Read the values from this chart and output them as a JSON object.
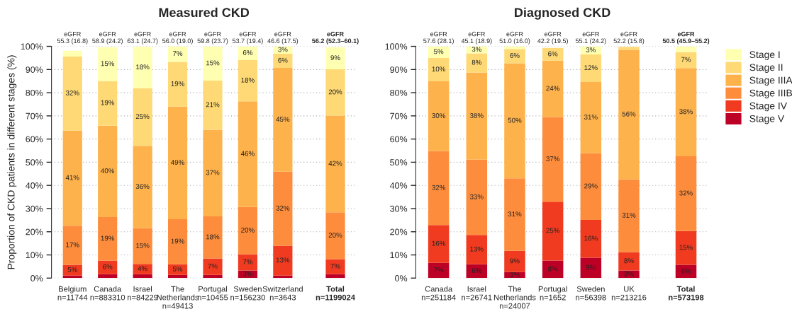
{
  "chart_data": [
    {
      "type": "bar",
      "stacked": true,
      "title": "Measured CKD",
      "ylabel": "Proportion of CKD patients in different stages (%)",
      "categories": [
        "Belgium\nn=11744",
        "Canada\nn=883310",
        "Israel\nn=84229",
        "The\nNetherlands\nn=49413",
        "Portugal\nn=10455",
        "Sweden\nn=156230",
        "Switzerland\nn=3643",
        "Total\nn=1199024"
      ],
      "series": [
        {
          "name": "Stage V",
          "color": "#bd0026",
          "values": [
            1.1,
            1.7,
            1.7,
            1.4,
            1.4,
            3.3,
            1.1,
            1.7
          ],
          "value_labels": [
            null,
            null,
            null,
            null,
            null,
            "3%",
            null,
            null
          ]
        },
        {
          "name": "Stage IV",
          "color": "#f03b20",
          "values": [
            4.6,
            5.9,
            4.4,
            4.6,
            7.1,
            7.0,
            12.9,
            6.5
          ],
          "value_labels": [
            "5%",
            "6%",
            "4%",
            "5%",
            "7%",
            "7%",
            "13%",
            "7%"
          ]
        },
        {
          "name": "Stage IIIB",
          "color": "#fd8d3c",
          "values": [
            16.9,
            18.7,
            15.4,
            19.4,
            18.1,
            20.4,
            31.9,
            20.2
          ],
          "value_labels": [
            "17%",
            "19%",
            "15%",
            "19%",
            "18%",
            "20%",
            "32%",
            "20%"
          ]
        },
        {
          "name": "Stage IIIA",
          "color": "#feb24c",
          "values": [
            41.1,
            39.5,
            35.6,
            48.6,
            37.4,
            45.6,
            44.8,
            41.7
          ],
          "value_labels": [
            "41%",
            "40%",
            "36%",
            "49%",
            "37%",
            "46%",
            "45%",
            "42%"
          ]
        },
        {
          "name": "Stage II",
          "color": "#fed976",
          "values": [
            31.9,
            19.3,
            24.8,
            19.3,
            21.2,
            17.8,
            6.1,
            20.0
          ],
          "value_labels": [
            "32%",
            "19%",
            "25%",
            "19%",
            "21%",
            "18%",
            "6%",
            "20%"
          ]
        },
        {
          "name": "Stage I",
          "color": "#ffffb2",
          "values": [
            2.5,
            14.5,
            17.9,
            6.7,
            14.8,
            5.9,
            3.2,
            9.5
          ],
          "value_labels": [
            null,
            "15%",
            "18%",
            "7%",
            "15%",
            "6%",
            "3%",
            "9%"
          ]
        }
      ],
      "ylim": [
        0,
        100
      ],
      "yticks": [
        {
          "value": 0,
          "label": "0%"
        },
        {
          "value": 10,
          "label": "10%"
        },
        {
          "value": 20,
          "label": "20%"
        },
        {
          "value": 30,
          "label": "30%"
        },
        {
          "value": 40,
          "label": "40%"
        },
        {
          "value": 50,
          "label": "50%"
        },
        {
          "value": 60,
          "label": "60%"
        },
        {
          "value": 70,
          "label": "70%"
        },
        {
          "value": 80,
          "label": "80%"
        },
        {
          "value": 90,
          "label": "90%"
        },
        {
          "value": 100,
          "label": "100%"
        }
      ],
      "grid": "y",
      "legend": "right",
      "annotations": [
        "eGFR\n55.3 (16.8)",
        "eGFR\n58.9 (24.2)",
        "eGFR\n63.1 (24.7)",
        "eGFR\n56.0 (19.0)",
        "eGFR\n59.8 (23.7)",
        "eGFR\n53.7 (19.4)",
        "eGFR\n46.6 (17.5)",
        "eGFR\n56.2 (52.3–60.1)"
      ]
    },
    {
      "type": "bar",
      "stacked": true,
      "title": "Diagnosed CKD",
      "categories": [
        "Canada\nn=251184",
        "Israel\nn=26741",
        "The\nNetherlands\nn=24007",
        "Portugal\nn=1652",
        "Sweden\nn=56398",
        "UK\nn=213216",
        "Total\nn=573198"
      ],
      "series": [
        {
          "color": "#bd0026",
          "values": [
            6.6,
            6.0,
            2.6,
            7.6,
            8.8,
            3.3,
            5.7
          ],
          "value_labels": [
            "7%",
            "6%",
            "3%",
            "8%",
            "9%",
            "3%",
            "6%"
          ]
        },
        {
          "color": "#f03b20",
          "values": [
            16.3,
            12.6,
            9.2,
            25.4,
            16.3,
            7.9,
            14.6
          ],
          "value_labels": [
            "16%",
            "13%",
            "9%",
            "25%",
            "16%",
            "8%",
            "15%"
          ]
        },
        {
          "color": "#fd8d3c",
          "values": [
            31.9,
            32.5,
            31.2,
            36.5,
            28.8,
            31.4,
            32.3
          ],
          "value_labels": [
            "32%",
            "33%",
            "31%",
            "37%",
            "29%",
            "31%",
            "32%"
          ]
        },
        {
          "color": "#feb24c",
          "values": [
            30.1,
            37.6,
            49.7,
            24.3,
            30.7,
            55.9,
            38.0
          ],
          "value_labels": [
            "30%",
            "38%",
            "50%",
            "24%",
            "31%",
            "56%",
            "38%"
          ]
        },
        {
          "color": "#fed976",
          "values": [
            10.1,
            8.3,
            6.2,
            5.5,
            11.9,
            1.3,
            7.0
          ],
          "value_labels": [
            "10%",
            "8%",
            "6%",
            "6%",
            "12%",
            null,
            "7%"
          ]
        },
        {
          "color": "#ffffb2",
          "values": [
            5.0,
            3.0,
            1.1,
            0,
            3.5,
            0,
            2.4
          ],
          "value_labels": [
            "5%",
            "3%",
            null,
            null,
            "3%",
            null,
            null
          ]
        }
      ],
      "ylim": [
        0,
        100
      ],
      "yticks": [
        {
          "value": 0,
          "label": "0%"
        },
        {
          "value": 10,
          "label": "10%"
        },
        {
          "value": 20,
          "label": "20%"
        },
        {
          "value": 30,
          "label": "30%"
        },
        {
          "value": 40,
          "label": "40%"
        },
        {
          "value": 50,
          "label": "50%"
        },
        {
          "value": 60,
          "label": "60%"
        },
        {
          "value": 70,
          "label": "70%"
        },
        {
          "value": 80,
          "label": "80%"
        },
        {
          "value": 90,
          "label": "90%"
        },
        {
          "value": 100,
          "label": "100%"
        }
      ],
      "grid": "y",
      "annotations": [
        "eGFR\n57.6 (28.1)",
        "eGFR\n45.1 (18.9)",
        "eGFR\n51.0 (16.0)",
        "eGFR\n42.2 (19.5)",
        "eGFR\n55.1 (24.2)",
        "eGFR\n52.2 (15.8)",
        "eGFR\n50.5 (45.9–55.2)"
      ]
    }
  ]
}
